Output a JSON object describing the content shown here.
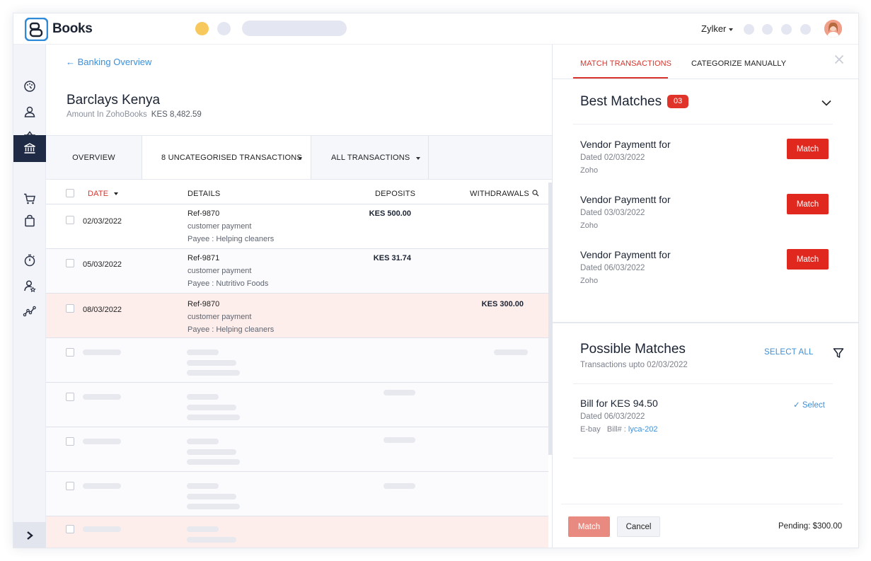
{
  "app": {
    "brand": "Books",
    "org": "Zylker"
  },
  "main": {
    "back_label": "← Banking Overview",
    "account_name": "Barclays Kenya",
    "amount_label": "Amount In ZohoBooks",
    "amount_value": "KES 8,482.59",
    "tabs": [
      {
        "label": "OVERVIEW"
      },
      {
        "label": "8 UNCATEGORISED TRANSACTIONS"
      },
      {
        "label": "ALL TRANSACTIONS"
      }
    ],
    "columns": {
      "date": "DATE",
      "details": "DETAILS",
      "deposits": "DEPOSITS",
      "withdrawals": "WITHDRAWALS"
    },
    "rows": [
      {
        "date": "02/03/2022",
        "ref": "Ref-9870",
        "desc": "customer payment",
        "payee": "Payee : Helping cleaners",
        "deposit": "KES 500.00",
        "withdrawal": ""
      },
      {
        "date": "05/03/2022",
        "ref": "Ref-9871",
        "desc": "customer payment",
        "payee": "Payee : Nutritivo Foods",
        "deposit": "KES 31.74",
        "withdrawal": ""
      },
      {
        "date": "08/03/2022",
        "ref": "Ref-9870",
        "desc": "customer payment",
        "payee": "Payee : Helping cleaners",
        "deposit": "",
        "withdrawal": "KES 300.00"
      }
    ]
  },
  "panel": {
    "tab_match": "MATCH TRANSACTIONS",
    "tab_categorize": "CATEGORIZE MANUALLY",
    "best_title": "Best Matches",
    "best_count": "03",
    "best_matches": [
      {
        "title": "Vendor Paymentt for",
        "dated": "Dated 02/03/2022",
        "vendor": "Zoho",
        "button": "Match"
      },
      {
        "title": "Vendor Paymentt for",
        "dated": "Dated 03/03/2022",
        "vendor": "Zoho",
        "button": "Match"
      },
      {
        "title": "Vendor Paymentt for",
        "dated": "Dated 06/03/2022",
        "vendor": "Zoho",
        "button": "Match"
      }
    ],
    "possible_title": "Possible Matches",
    "possible_sub": "Transactions upto 02/03/2022",
    "select_all": "SELECT ALL",
    "possible": {
      "title": "Bill for KES 94.50",
      "dated": "Dated 06/03/2022",
      "vendor": "E-bay",
      "bill_label": "Bill# :",
      "bill_no": "lyca-202",
      "select_label": "✓  Select"
    },
    "footer": {
      "match": "Match",
      "cancel": "Cancel",
      "pending": "Pending: $300.00"
    }
  }
}
